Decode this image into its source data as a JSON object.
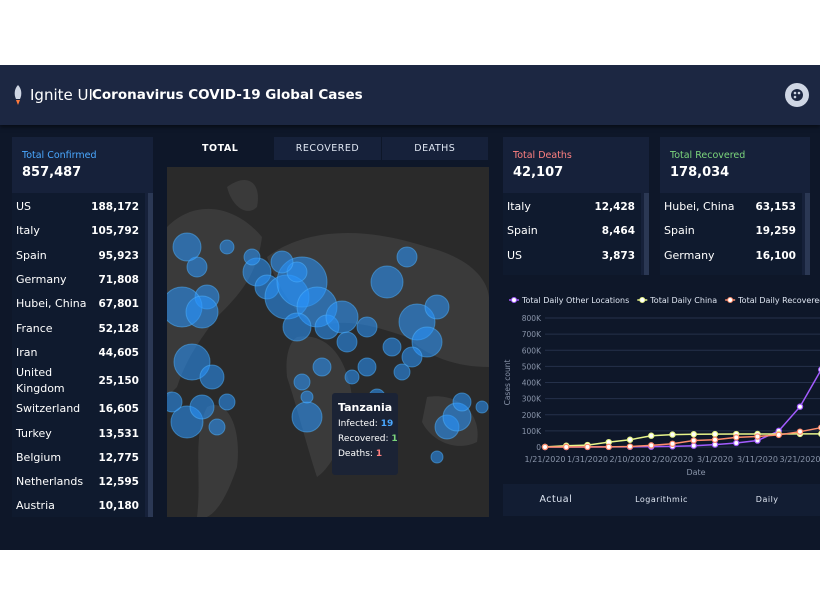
{
  "header": {
    "logo": "Ignite UI",
    "title": "Coronavirus COVID-19 Global Cases"
  },
  "confirmed": {
    "label": "Total Confirmed",
    "total": "857,487",
    "rows": [
      [
        "US",
        "188,172"
      ],
      [
        "Italy",
        "105,792"
      ],
      [
        "Spain",
        "95,923"
      ],
      [
        "Germany",
        "71,808"
      ],
      [
        "Hubei, China",
        "67,801"
      ],
      [
        "France",
        "52,128"
      ],
      [
        "Iran",
        "44,605"
      ],
      [
        "United Kingdom",
        "25,150"
      ],
      [
        "Switzerland",
        "16,605"
      ],
      [
        "Turkey",
        "13,531"
      ],
      [
        "Belgium",
        "12,775"
      ],
      [
        "Netherlands",
        "12,595"
      ],
      [
        "Austria",
        "10,180"
      ]
    ]
  },
  "map": {
    "tabs": [
      "TOTAL",
      "RECOVERED",
      "DEATHS"
    ],
    "tooltip": {
      "country": "Tanzania",
      "infected_label": "Infected:",
      "infected": "19",
      "recovered_label": "Recovered:",
      "recovered": "1",
      "deaths_label": "Deaths:",
      "deaths": "1"
    }
  },
  "deaths": {
    "label": "Total Deaths",
    "total": "42,107",
    "rows": [
      [
        "Italy",
        "12,428"
      ],
      [
        "Spain",
        "8,464"
      ],
      [
        "US",
        "3,873"
      ]
    ]
  },
  "recovered": {
    "label": "Total Recovered",
    "total": "178,034",
    "rows": [
      [
        "Hubei, China",
        "63,153"
      ],
      [
        "Spain",
        "19,259"
      ],
      [
        "Germany",
        "16,100"
      ]
    ]
  },
  "chart_data": {
    "type": "line",
    "y_label": "Cases count",
    "x_label": "Date",
    "categories": [
      "1/21/2020",
      null,
      "1/31/2020",
      null,
      "2/10/2020",
      null,
      "2/20/2020",
      null,
      "3/1/2020",
      null,
      "3/11/2020",
      null,
      "3/21/2020",
      null
    ],
    "series": [
      {
        "name": "Total Daily Other Locations",
        "color": "#a35cff",
        "values": [
          0,
          0,
          100,
          500,
          1000,
          2000,
          4000,
          8000,
          15000,
          25000,
          40000,
          100000,
          250000,
          480000
        ]
      },
      {
        "name": "Total Daily China",
        "color": "#e8f58a",
        "values": [
          500,
          8000,
          12000,
          30000,
          45000,
          70000,
          77000,
          79000,
          80000,
          80500,
          80800,
          81000,
          81300,
          81500
        ]
      },
      {
        "name": "Total Daily Recovered",
        "color": "#ff8c6b",
        "values": [
          0,
          0,
          500,
          1000,
          3000,
          10000,
          20000,
          40000,
          45000,
          60000,
          65000,
          75000,
          95000,
          120000
        ]
      }
    ],
    "ylim": [
      0,
      800000
    ],
    "yticks": [
      0,
      {
        "value": 100000,
        "label": "100K"
      },
      {
        "value": 200000,
        "label": "200K"
      },
      {
        "value": 300000,
        "label": "300K"
      },
      {
        "value": 400000,
        "label": "400K"
      },
      {
        "value": 500000,
        "label": "500K"
      },
      {
        "value": 600000,
        "label": "600K"
      },
      {
        "value": 700000,
        "label": "700K"
      },
      {
        "value": 800000,
        "label": "800K"
      }
    ],
    "grid": true
  },
  "chart_tabs": [
    "Actual",
    "Logarithmic",
    "Daily"
  ]
}
